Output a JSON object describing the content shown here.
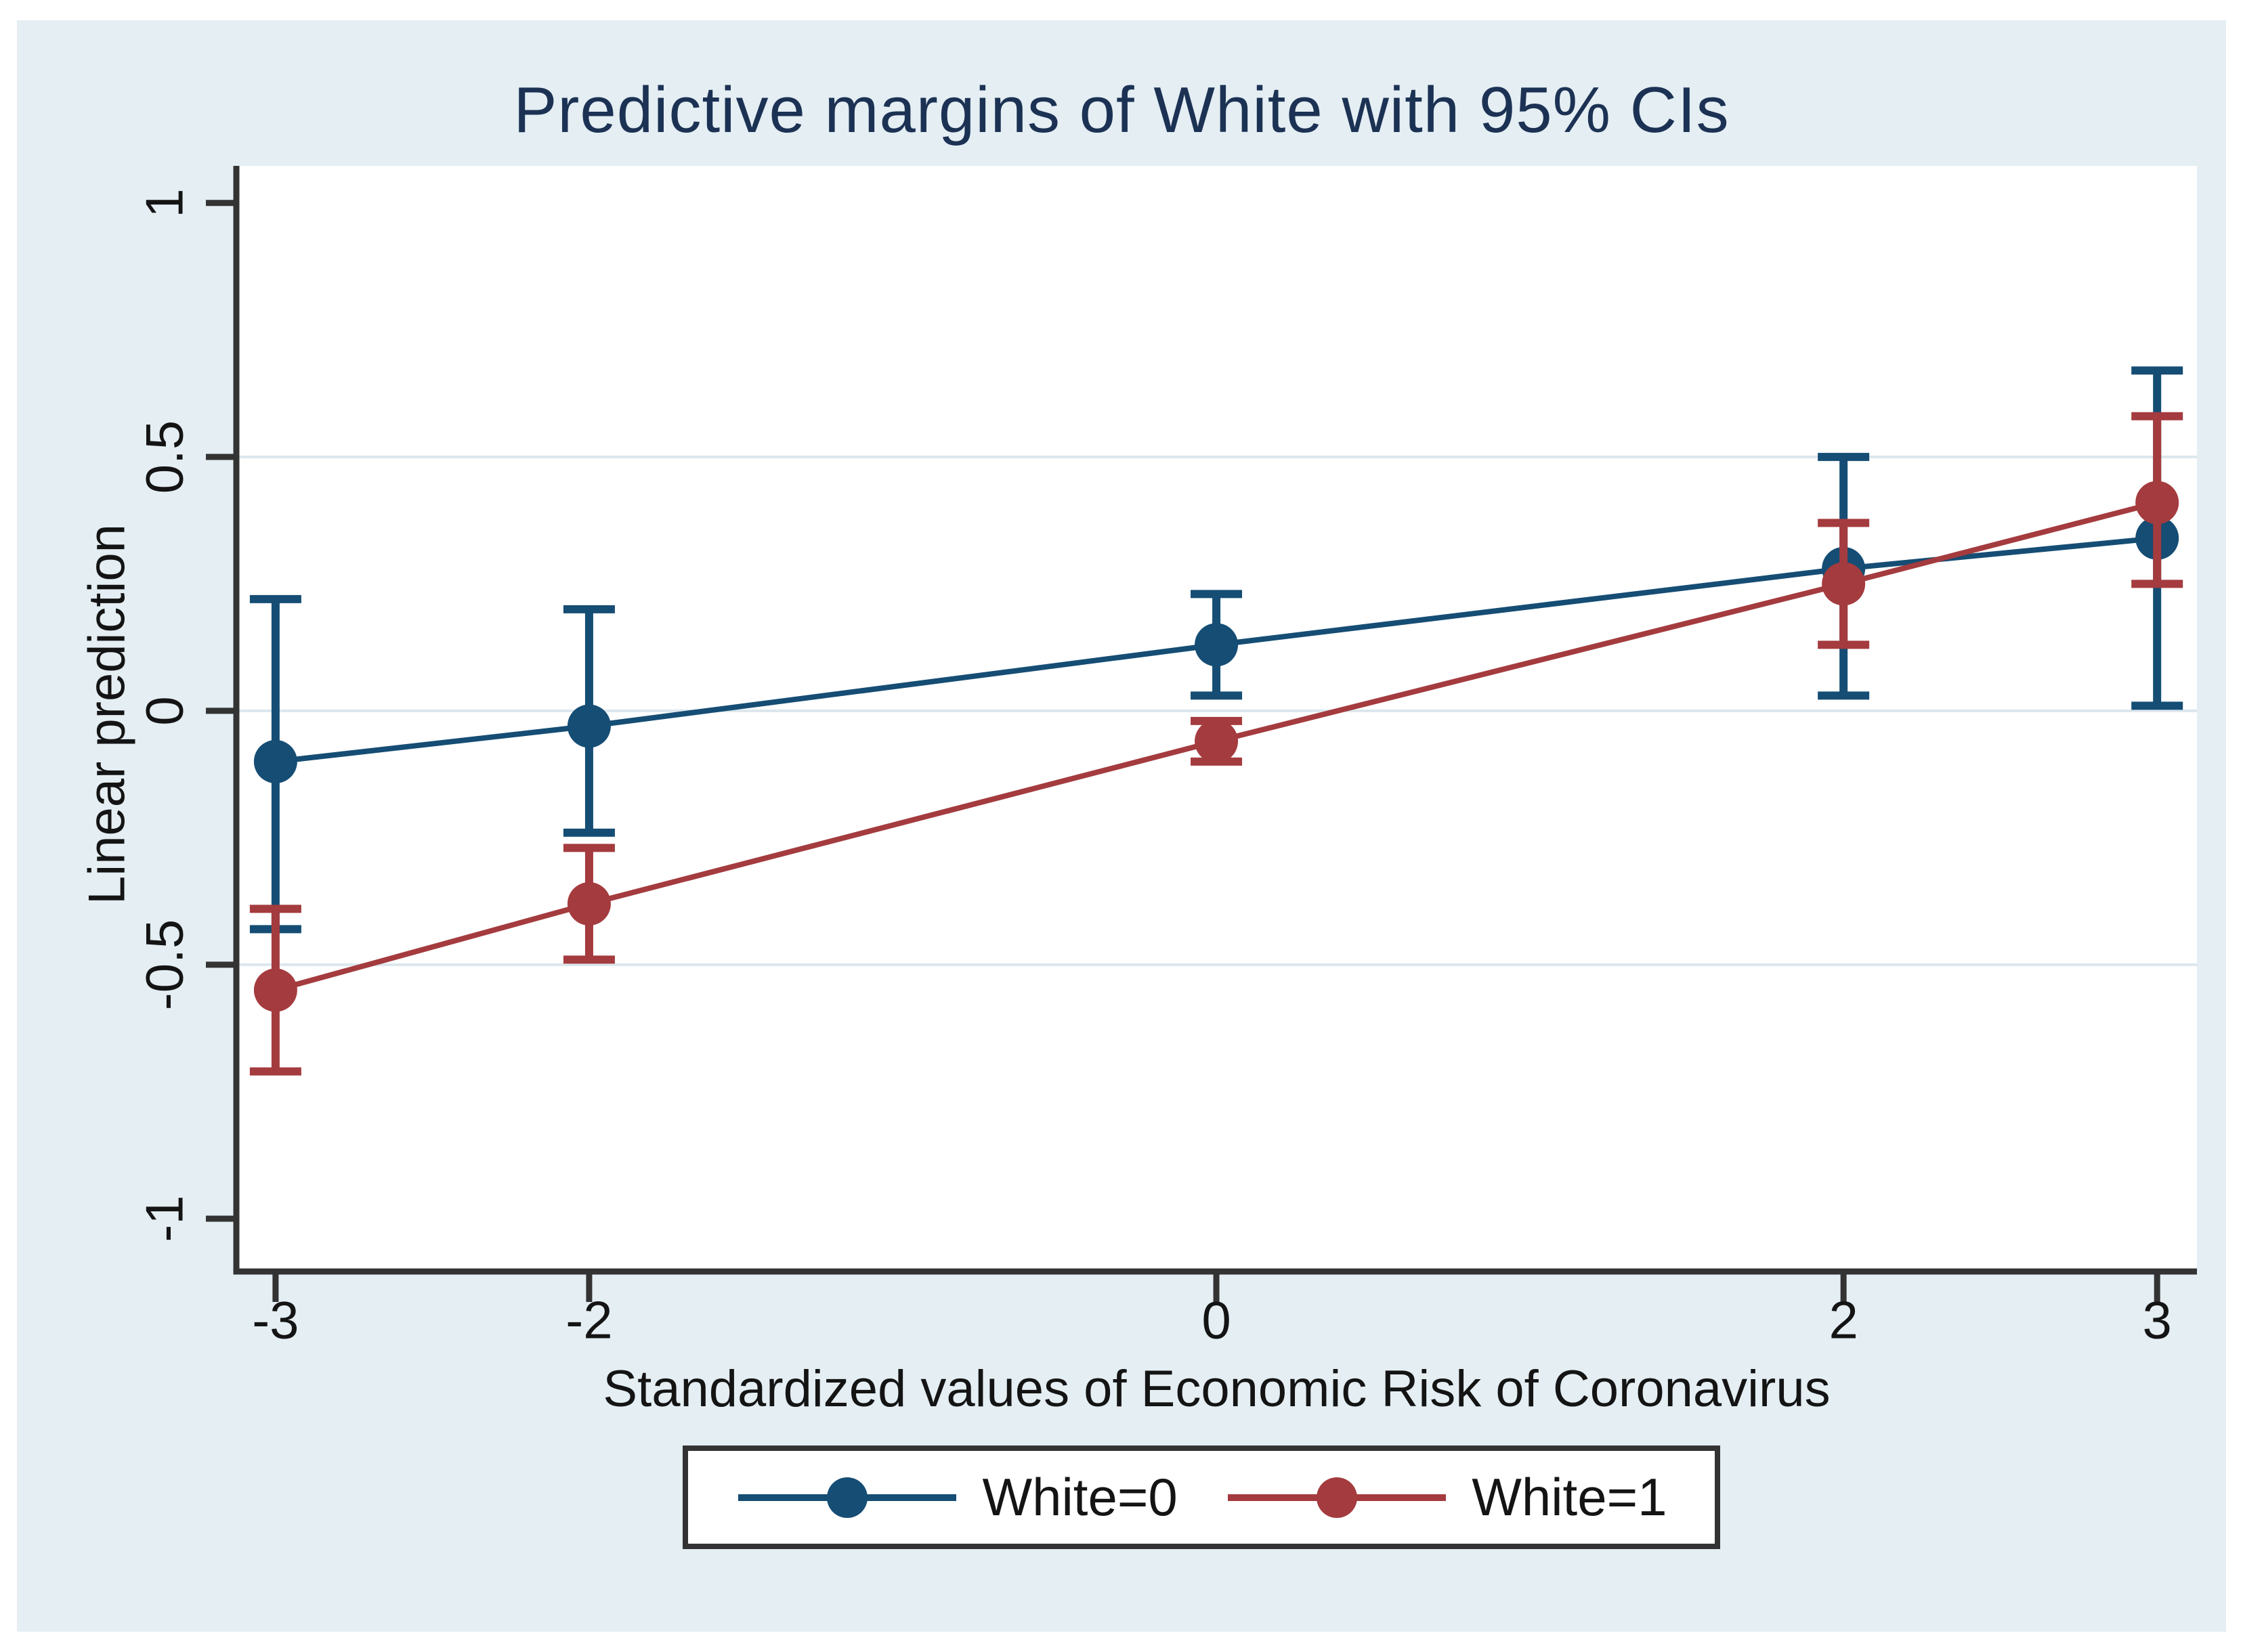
{
  "figure": {
    "background_color": "#e4eef3",
    "plot_background": "#ffffff",
    "title_color": "#1c3254",
    "axis_color": "#333333",
    "grid_color": "#dce7ed",
    "tick_text_color": "#141414",
    "legend_border_color": "#333333"
  },
  "chart_data": {
    "type": "line",
    "title": "Predictive margins of White with 95% CIs",
    "xlabel": "Standardized values of Economic Risk of Coronavirus",
    "ylabel": "Linear prediction",
    "error_bars": "95% CI",
    "x": [
      -3,
      -2,
      0,
      2,
      3
    ],
    "x_tick_labels": [
      "-3",
      "-2",
      "0",
      "2",
      "3"
    ],
    "y_tick_values": [
      1,
      0.5,
      0,
      -0.5,
      -1
    ],
    "y_tick_labels": [
      "1",
      "0.5",
      "0",
      "-0.5",
      "-1"
    ],
    "grid_values": [
      0.5,
      0,
      -0.5
    ],
    "grid": true,
    "xlim": [
      -3.125,
      3.127
    ],
    "ylim": [
      -1.104,
      1.073
    ],
    "legend_position": "bottom-center",
    "series": [
      {
        "name": "White=0",
        "color": "#154d74",
        "values": [
          -0.1,
          -0.03,
          0.13,
          0.28,
          0.34
        ],
        "ci_low": [
          -0.43,
          -0.24,
          0.03,
          0.03,
          0.01
        ],
        "ci_high": [
          0.22,
          0.2,
          0.23,
          0.5,
          0.67
        ]
      },
      {
        "name": "White=1",
        "color": "#a43b3e",
        "values": [
          -0.55,
          -0.38,
          -0.06,
          0.25,
          0.41
        ],
        "ci_low": [
          -0.71,
          -0.49,
          -0.1,
          0.13,
          0.25
        ],
        "ci_high": [
          -0.39,
          -0.27,
          -0.02,
          0.37,
          0.58
        ]
      }
    ]
  }
}
